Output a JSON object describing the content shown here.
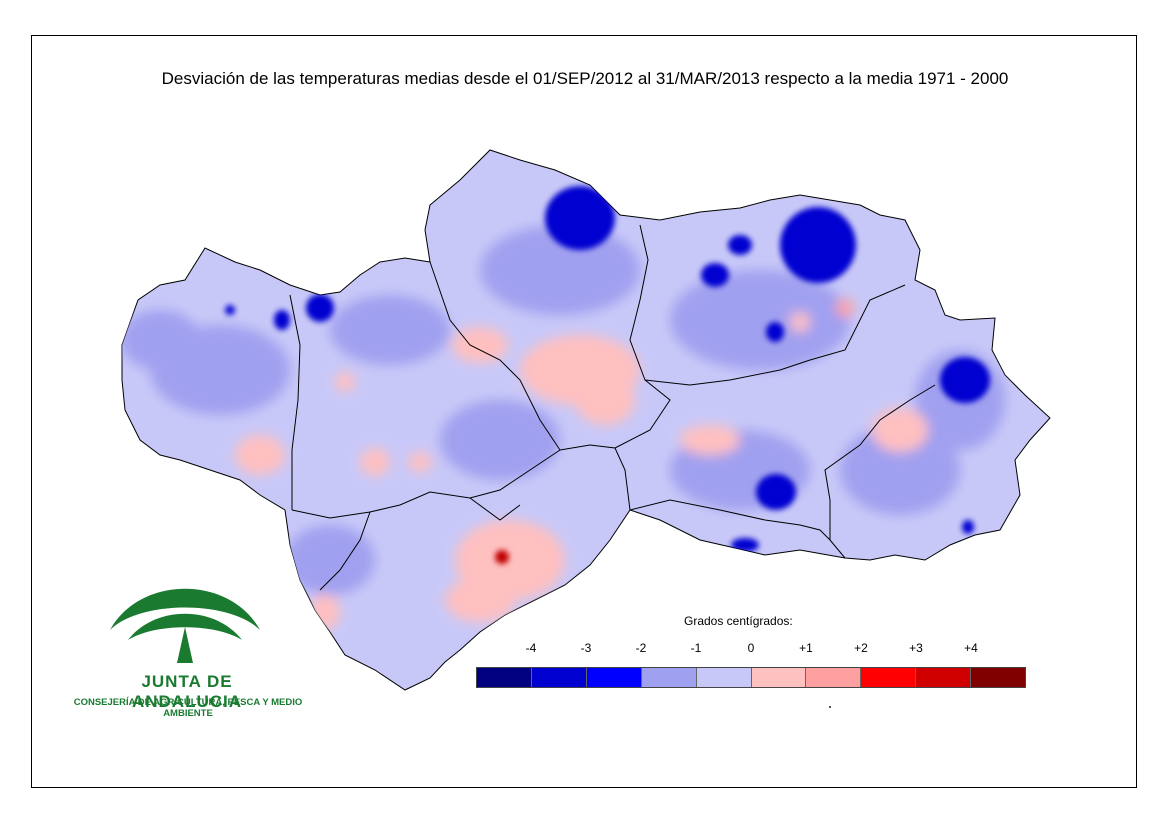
{
  "title": "Desviación de las temperaturas medias desde el 01/SEP/2012 al 31/MAR/2013 respecto a la media 1971 - 2000",
  "legend": {
    "title": "Grados centígrados:",
    "ticks": [
      "-4",
      "-3",
      "-2",
      "-1",
      "0",
      "+1",
      "+2",
      "+3",
      "+4"
    ],
    "colors": [
      "#000080",
      "#0000d0",
      "#0000ff",
      "#a0a0f0",
      "#c8c8f8",
      "#ffc0c0",
      "#ffa0a0",
      "#ff0000",
      "#d00000",
      "#800000"
    ]
  },
  "logo": {
    "org_name": "JUNTA DE ANDALUCIA",
    "department": "CONSEJERÍA DE AGRICULTURA, PESCA Y MEDIO AMBIENTE",
    "color": "#1a7a30"
  },
  "map": {
    "base_color": "#c8c8f8",
    "mid_color": "#a0a0f0",
    "cold_color": "#0000d0",
    "warm_color": "#ffc0c0",
    "hot_color": "#c00000",
    "border_color": "#000000"
  }
}
